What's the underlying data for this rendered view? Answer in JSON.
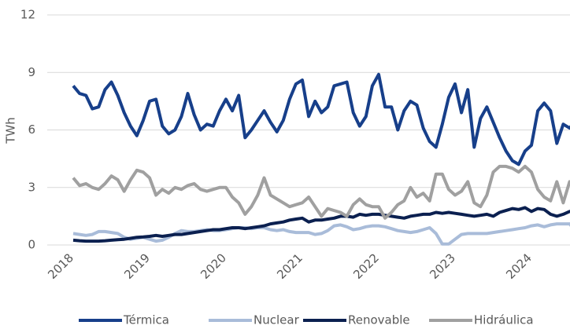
{
  "chart_data": {
    "type": "line",
    "y_label": "TWh",
    "categories": [
      "2018",
      null,
      null,
      null,
      null,
      null,
      null,
      null,
      null,
      null,
      null,
      null,
      "2019",
      null,
      null,
      null,
      null,
      null,
      null,
      null,
      null,
      null,
      null,
      null,
      "2020",
      null,
      null,
      null,
      null,
      null,
      null,
      null,
      null,
      null,
      null,
      null,
      "2021",
      null,
      null,
      null,
      null,
      null,
      null,
      null,
      null,
      null,
      null,
      null,
      "2022",
      null,
      null,
      null,
      null,
      null,
      null,
      null,
      null,
      null,
      null,
      null,
      "2023",
      null,
      null,
      null,
      null,
      null,
      null,
      null,
      null,
      null,
      null,
      null,
      "2024",
      null,
      null,
      null,
      null,
      null,
      null,
      null
    ],
    "series": [
      {
        "name": "Térmica",
        "color": "#173f8a",
        "values": [
          8.3,
          7.9,
          7.8,
          7.1,
          7.2,
          8.1,
          8.5,
          7.8,
          6.9,
          6.2,
          5.7,
          6.5,
          7.5,
          7.6,
          6.2,
          5.8,
          6.0,
          6.7,
          7.9,
          6.8,
          6.0,
          6.3,
          6.2,
          7.0,
          7.6,
          7.0,
          7.8,
          5.6,
          6.0,
          6.5,
          7.0,
          6.4,
          5.9,
          6.5,
          7.6,
          8.4,
          8.6,
          6.7,
          7.5,
          6.9,
          7.2,
          8.3,
          8.4,
          8.5,
          6.9,
          6.2,
          6.7,
          8.3,
          8.9,
          7.2,
          7.2,
          6.0,
          7.0,
          7.5,
          7.3,
          6.1,
          5.4,
          5.1,
          6.3,
          7.7,
          8.4,
          6.9,
          8.1,
          5.1,
          6.6,
          7.2,
          6.4,
          5.6,
          4.9,
          4.4,
          4.2,
          4.9,
          5.2,
          7.0,
          7.4,
          7.0,
          5.3,
          6.3,
          6.1,
          6.5
        ]
      },
      {
        "name": "Nuclear",
        "color": "#a9bcd9",
        "values": [
          0.6,
          0.55,
          0.5,
          0.55,
          0.7,
          0.7,
          0.65,
          0.6,
          0.4,
          0.3,
          0.35,
          0.4,
          0.3,
          0.2,
          0.25,
          0.4,
          0.6,
          0.75,
          0.7,
          0.7,
          0.75,
          0.8,
          0.75,
          0.75,
          0.8,
          0.85,
          0.9,
          0.9,
          0.85,
          0.9,
          0.9,
          0.8,
          0.75,
          0.8,
          0.7,
          0.65,
          0.65,
          0.65,
          0.55,
          0.6,
          0.75,
          1.0,
          1.05,
          0.95,
          0.8,
          0.85,
          0.95,
          1.0,
          1.0,
          0.95,
          0.85,
          0.75,
          0.7,
          0.65,
          0.7,
          0.8,
          0.9,
          0.6,
          0.05,
          0.05,
          0.3,
          0.55,
          0.6,
          0.6,
          0.6,
          0.6,
          0.65,
          0.7,
          0.75,
          0.8,
          0.85,
          0.9,
          1.0,
          1.05,
          0.95,
          1.05,
          1.1,
          1.1,
          1.1,
          0.7
        ]
      },
      {
        "name": "Renovable",
        "color": "#0b2050",
        "values": [
          0.25,
          0.22,
          0.2,
          0.2,
          0.2,
          0.22,
          0.25,
          0.28,
          0.3,
          0.35,
          0.4,
          0.42,
          0.45,
          0.5,
          0.45,
          0.5,
          0.55,
          0.55,
          0.6,
          0.65,
          0.7,
          0.75,
          0.8,
          0.8,
          0.85,
          0.9,
          0.9,
          0.85,
          0.9,
          0.95,
          1.0,
          1.1,
          1.15,
          1.2,
          1.3,
          1.35,
          1.4,
          1.2,
          1.3,
          1.3,
          1.35,
          1.4,
          1.5,
          1.5,
          1.45,
          1.6,
          1.55,
          1.6,
          1.6,
          1.55,
          1.5,
          1.45,
          1.4,
          1.5,
          1.55,
          1.6,
          1.6,
          1.7,
          1.65,
          1.7,
          1.65,
          1.6,
          1.55,
          1.5,
          1.55,
          1.6,
          1.5,
          1.7,
          1.8,
          1.9,
          1.85,
          1.95,
          1.75,
          1.9,
          1.85,
          1.6,
          1.5,
          1.6,
          1.75,
          1.8
        ]
      },
      {
        "name": "Hidráulica",
        "color": "#a0a0a0",
        "values": [
          3.5,
          3.1,
          3.2,
          3.0,
          2.9,
          3.2,
          3.6,
          3.4,
          2.8,
          3.4,
          3.9,
          3.8,
          3.5,
          2.6,
          2.9,
          2.7,
          3.0,
          2.9,
          3.1,
          3.2,
          2.9,
          2.8,
          2.9,
          3.0,
          3.0,
          2.5,
          2.2,
          1.6,
          2.0,
          2.6,
          3.5,
          2.6,
          2.4,
          2.2,
          2.0,
          2.1,
          2.2,
          2.5,
          2.0,
          1.5,
          1.9,
          1.8,
          1.7,
          1.5,
          2.1,
          2.4,
          2.1,
          2.0,
          2.0,
          1.4,
          1.7,
          2.1,
          2.3,
          3.0,
          2.5,
          2.7,
          2.3,
          3.7,
          3.7,
          2.9,
          2.6,
          2.8,
          3.3,
          2.2,
          2.0,
          2.6,
          3.8,
          4.1,
          4.1,
          4.0,
          3.8,
          4.1,
          3.8,
          2.9,
          2.5,
          2.3,
          3.3,
          2.2,
          3.3,
          2.7
        ]
      }
    ],
    "ylim": [
      0,
      12
    ],
    "yticks": [
      0,
      3,
      6,
      9,
      12
    ],
    "grid": true,
    "legend": "bottom"
  }
}
